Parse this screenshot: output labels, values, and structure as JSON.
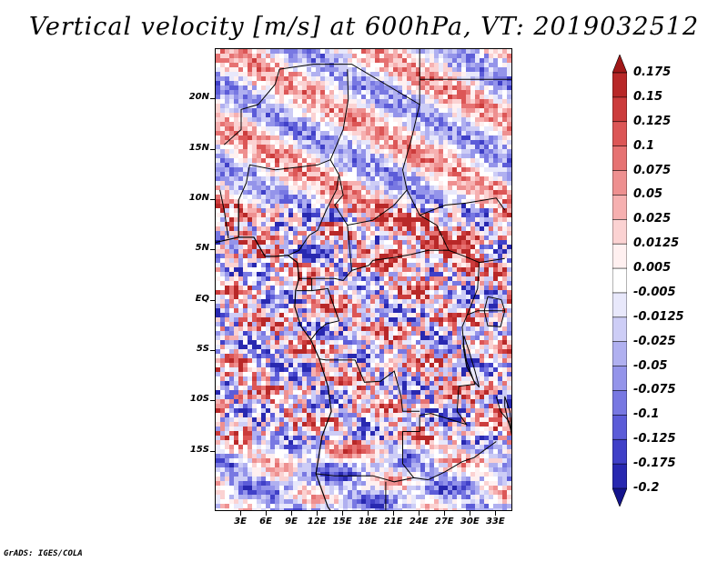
{
  "title": "Vertical velocity [m/s] at 600hPa, VT: 2019032512",
  "footer": "GrADS: IGES/COLA",
  "map": {
    "region": "Central Africa",
    "lat_range": [
      -21,
      25
    ],
    "lon_range": [
      0,
      35
    ],
    "lat_labels": [
      {
        "text": "20N",
        "lat": 20
      },
      {
        "text": "15N",
        "lat": 15
      },
      {
        "text": "10N",
        "lat": 10
      },
      {
        "text": "5N",
        "lat": 5
      },
      {
        "text": "EQ",
        "lat": 0
      },
      {
        "text": "5S",
        "lat": -5
      },
      {
        "text": "10S",
        "lat": -10
      },
      {
        "text": "15S",
        "lat": -15
      }
    ],
    "lon_labels": [
      {
        "text": "3E",
        "lon": 3
      },
      {
        "text": "6E",
        "lon": 6
      },
      {
        "text": "9E",
        "lon": 9
      },
      {
        "text": "12E",
        "lon": 12
      },
      {
        "text": "15E",
        "lon": 15
      },
      {
        "text": "18E",
        "lon": 18
      },
      {
        "text": "21E",
        "lon": 21
      },
      {
        "text": "24E",
        "lon": 24
      },
      {
        "text": "27E",
        "lon": 27
      },
      {
        "text": "30E",
        "lon": 30
      },
      {
        "text": "33E",
        "lon": 33
      }
    ]
  },
  "colorbar": {
    "labels": [
      "0.175",
      "0.15",
      "0.125",
      "0.1",
      "0.075",
      "0.05",
      "0.025",
      "0.0125",
      "0.005",
      "-0.005",
      "-0.0125",
      "-0.025",
      "-0.05",
      "-0.075",
      "-0.1",
      "-0.125",
      "-0.175",
      "-0.2"
    ],
    "colors": [
      "#a01818",
      "#b82828",
      "#cc3c3c",
      "#dc5656",
      "#e67272",
      "#ee9090",
      "#f6b0b0",
      "#fbd2d2",
      "#fff0f0",
      "#ffffff",
      "#e8e8fb",
      "#cdcdf6",
      "#b0b0f0",
      "#9494ea",
      "#7878e2",
      "#5c5cd8",
      "#4040c8",
      "#2828b0",
      "#14148c"
    ]
  }
}
